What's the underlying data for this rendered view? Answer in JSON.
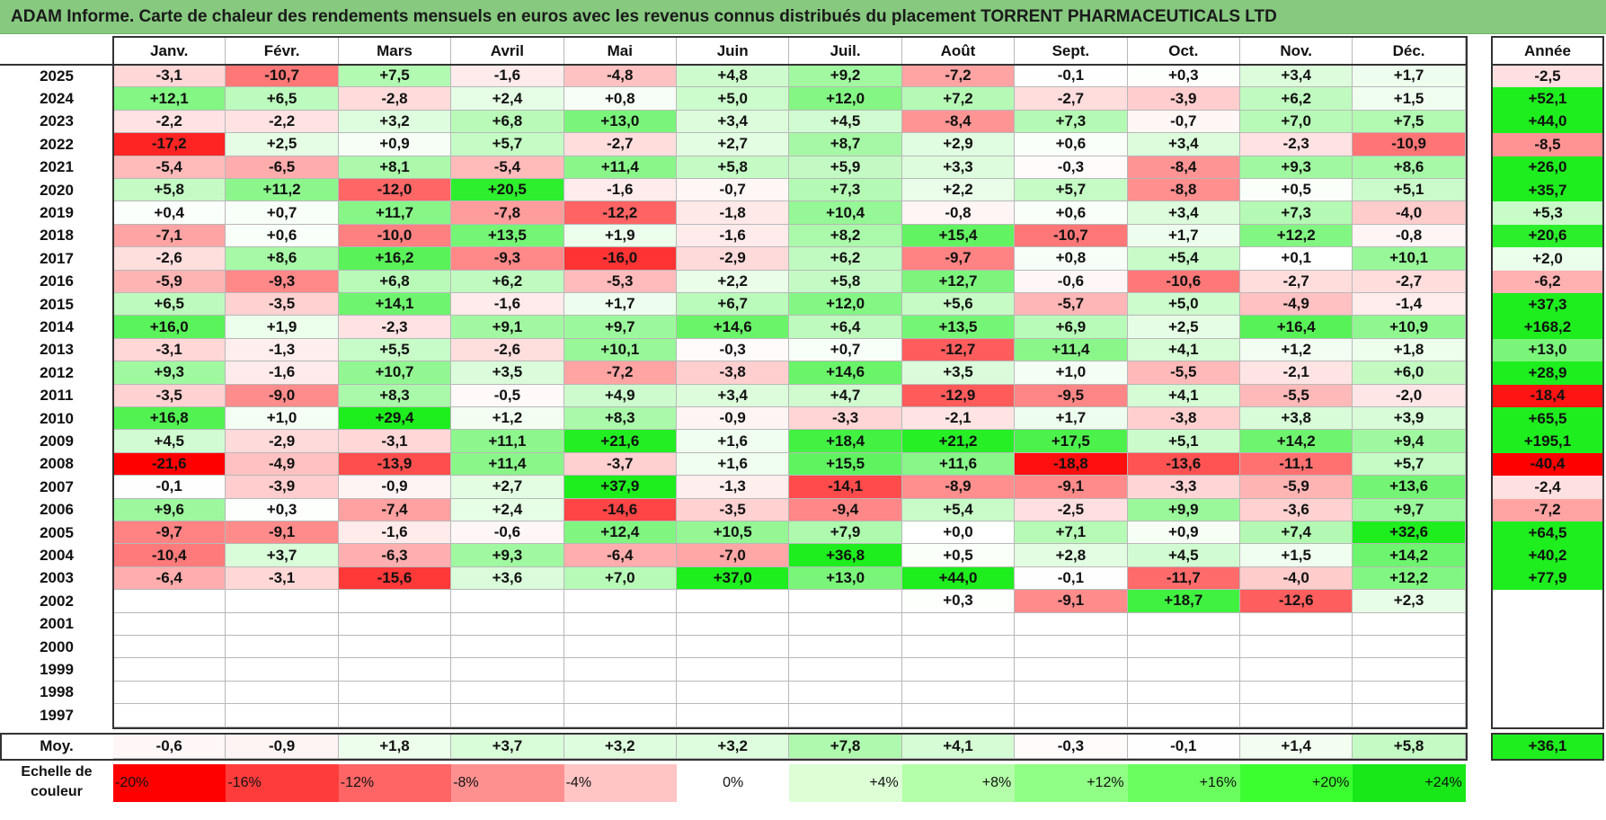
{
  "title": "ADAM Informe. Carte de chaleur des rendements mensuels en euros avec les revenus connus distribués du placement TORRENT PHARMACEUTICALS LTD",
  "chart_data": {
    "type": "heatmap",
    "title": "ADAM Informe. Carte de chaleur des rendements mensuels en euros avec les revenus connus distribués du placement TORRENT PHARMACEUTICALS LTD",
    "months": [
      "Janv.",
      "Févr.",
      "Mars",
      "Avril",
      "Mai",
      "Juin",
      "Juil.",
      "Août",
      "Sept.",
      "Oct.",
      "Nov.",
      "Déc."
    ],
    "year_header": "Année",
    "rows": [
      {
        "year": "2025",
        "values": [
          "-3,1",
          "-10,7",
          "+7,5",
          "-1,6",
          "-4,8",
          "+4,8",
          "+9,2",
          "-7,2",
          "-0,1",
          "+0,3",
          "+3,4",
          "+1,7"
        ],
        "annual": "-2,5"
      },
      {
        "year": "2024",
        "values": [
          "+12,1",
          "+6,5",
          "-2,8",
          "+2,4",
          "+0,8",
          "+5,0",
          "+12,0",
          "+7,2",
          "-2,7",
          "-3,9",
          "+6,2",
          "+1,5"
        ],
        "annual": "+52,1"
      },
      {
        "year": "2023",
        "values": [
          "-2,2",
          "-2,2",
          "+3,2",
          "+6,8",
          "+13,0",
          "+3,4",
          "+4,5",
          "-8,4",
          "+7,3",
          "-0,7",
          "+7,0",
          "+7,5"
        ],
        "annual": "+44,0"
      },
      {
        "year": "2022",
        "values": [
          "-17,2",
          "+2,5",
          "+0,9",
          "+5,7",
          "-2,7",
          "+2,7",
          "+8,7",
          "+2,9",
          "+0,6",
          "+3,4",
          "-2,3",
          "-10,9"
        ],
        "annual": "-8,5"
      },
      {
        "year": "2021",
        "values": [
          "-5,4",
          "-6,5",
          "+8,1",
          "-5,4",
          "+11,4",
          "+5,8",
          "+5,9",
          "+3,3",
          "-0,3",
          "-8,4",
          "+9,3",
          "+8,6"
        ],
        "annual": "+26,0"
      },
      {
        "year": "2020",
        "values": [
          "+5,8",
          "+11,2",
          "-12,0",
          "+20,5",
          "-1,6",
          "-0,7",
          "+7,3",
          "+2,2",
          "+5,7",
          "-8,8",
          "+0,5",
          "+5,1"
        ],
        "annual": "+35,7"
      },
      {
        "year": "2019",
        "values": [
          "+0,4",
          "+0,7",
          "+11,7",
          "-7,8",
          "-12,2",
          "-1,8",
          "+10,4",
          "-0,8",
          "+0,6",
          "+3,4",
          "+7,3",
          "-4,0"
        ],
        "annual": "+5,3"
      },
      {
        "year": "2018",
        "values": [
          "-7,1",
          "+0,6",
          "-10,0",
          "+13,5",
          "+1,9",
          "-1,6",
          "+8,2",
          "+15,4",
          "-10,7",
          "+1,7",
          "+12,2",
          "-0,8"
        ],
        "annual": "+20,6"
      },
      {
        "year": "2017",
        "values": [
          "-2,6",
          "+8,6",
          "+16,2",
          "-9,3",
          "-16,0",
          "-2,9",
          "+6,2",
          "-9,7",
          "+0,8",
          "+5,4",
          "+0,1",
          "+10,1"
        ],
        "annual": "+2,0"
      },
      {
        "year": "2016",
        "values": [
          "-5,9",
          "-9,3",
          "+6,8",
          "+6,2",
          "-5,3",
          "+2,2",
          "+5,8",
          "+12,7",
          "-0,6",
          "-10,6",
          "-2,7",
          "-2,7"
        ],
        "annual": "-6,2"
      },
      {
        "year": "2015",
        "values": [
          "+6,5",
          "-3,5",
          "+14,1",
          "-1,6",
          "+1,7",
          "+6,7",
          "+12,0",
          "+5,6",
          "-5,7",
          "+5,0",
          "-4,9",
          "-1,4"
        ],
        "annual": "+37,3"
      },
      {
        "year": "2014",
        "values": [
          "+16,0",
          "+1,9",
          "-2,3",
          "+9,1",
          "+9,7",
          "+14,6",
          "+6,4",
          "+13,5",
          "+6,9",
          "+2,5",
          "+16,4",
          "+10,9"
        ],
        "annual": "+168,2"
      },
      {
        "year": "2013",
        "values": [
          "-3,1",
          "-1,3",
          "+5,5",
          "-2,6",
          "+10,1",
          "-0,3",
          "+0,7",
          "-12,7",
          "+11,4",
          "+4,1",
          "+1,2",
          "+1,8"
        ],
        "annual": "+13,0"
      },
      {
        "year": "2012",
        "values": [
          "+9,3",
          "-1,6",
          "+10,7",
          "+3,5",
          "-7,2",
          "-3,8",
          "+14,6",
          "+3,5",
          "+1,0",
          "-5,5",
          "-2,1",
          "+6,0"
        ],
        "annual": "+28,9"
      },
      {
        "year": "2011",
        "values": [
          "-3,5",
          "-9,0",
          "+8,3",
          "-0,5",
          "+4,9",
          "+3,4",
          "+4,7",
          "-12,9",
          "-9,5",
          "+4,1",
          "-5,5",
          "-2,0"
        ],
        "annual": "-18,4"
      },
      {
        "year": "2010",
        "values": [
          "+16,8",
          "+1,0",
          "+29,4",
          "+1,2",
          "+8,3",
          "-0,9",
          "-3,3",
          "-2,1",
          "+1,7",
          "-3,8",
          "+3,8",
          "+3,9"
        ],
        "annual": "+65,5"
      },
      {
        "year": "2009",
        "values": [
          "+4,5",
          "-2,9",
          "-3,1",
          "+11,1",
          "+21,6",
          "+1,6",
          "+18,4",
          "+21,2",
          "+17,5",
          "+5,1",
          "+14,2",
          "+9,4"
        ],
        "annual": "+195,1"
      },
      {
        "year": "2008",
        "values": [
          "-21,6",
          "-4,9",
          "-13,9",
          "+11,4",
          "-3,7",
          "+1,6",
          "+15,5",
          "+11,6",
          "-18,8",
          "-13,6",
          "-11,1",
          "+5,7"
        ],
        "annual": "-40,4"
      },
      {
        "year": "2007",
        "values": [
          "-0,1",
          "-3,9",
          "-0,9",
          "+2,7",
          "+37,9",
          "-1,3",
          "-14,1",
          "-8,9",
          "-9,1",
          "-3,3",
          "-5,9",
          "+13,6"
        ],
        "annual": "-2,4"
      },
      {
        "year": "2006",
        "values": [
          "+9,6",
          "+0,3",
          "-7,4",
          "+2,4",
          "-14,6",
          "-3,5",
          "-9,4",
          "+5,4",
          "-2,5",
          "+9,9",
          "-3,6",
          "+9,7"
        ],
        "annual": "-7,2"
      },
      {
        "year": "2005",
        "values": [
          "-9,7",
          "-9,1",
          "-1,6",
          "-0,6",
          "+12,4",
          "+10,5",
          "+7,9",
          "+0,0",
          "+7,1",
          "+0,9",
          "+7,4",
          "+32,6"
        ],
        "annual": "+64,5"
      },
      {
        "year": "2004",
        "values": [
          "-10,4",
          "+3,7",
          "-6,3",
          "+9,3",
          "-6,4",
          "-7,0",
          "+36,8",
          "+0,5",
          "+2,8",
          "+4,5",
          "+1,5",
          "+14,2"
        ],
        "annual": "+40,2"
      },
      {
        "year": "2003",
        "values": [
          "-6,4",
          "-3,1",
          "-15,6",
          "+3,6",
          "+7,0",
          "+37,0",
          "+13,0",
          "+44,0",
          "-0,1",
          "-11,7",
          "-4,0",
          "+12,2"
        ],
        "annual": "+77,9"
      },
      {
        "year": "2002",
        "values": [
          "",
          "",
          "",
          "",
          "",
          "",
          "",
          "+0,3",
          "-9,1",
          "+18,7",
          "-12,6",
          "+2,3"
        ],
        "annual": ""
      },
      {
        "year": "2001",
        "values": [
          "",
          "",
          "",
          "",
          "",
          "",
          "",
          "",
          "",
          "",
          "",
          ""
        ],
        "annual": ""
      },
      {
        "year": "2000",
        "values": [
          "",
          "",
          "",
          "",
          "",
          "",
          "",
          "",
          "",
          "",
          "",
          ""
        ],
        "annual": ""
      },
      {
        "year": "1999",
        "values": [
          "",
          "",
          "",
          "",
          "",
          "",
          "",
          "",
          "",
          "",
          "",
          ""
        ],
        "annual": ""
      },
      {
        "year": "1998",
        "values": [
          "",
          "",
          "",
          "",
          "",
          "",
          "",
          "",
          "",
          "",
          "",
          ""
        ],
        "annual": ""
      },
      {
        "year": "1997",
        "values": [
          "",
          "",
          "",
          "",
          "",
          "",
          "",
          "",
          "",
          "",
          "",
          ""
        ],
        "annual": ""
      }
    ],
    "average": {
      "label": "Moy.",
      "values": [
        "-0,6",
        "-0,9",
        "+1,8",
        "+3,7",
        "+3,2",
        "+3,2",
        "+7,8",
        "+4,1",
        "-0,3",
        "-0,1",
        "+1,4",
        "+5,8"
      ],
      "annual": "+36,1"
    },
    "color_scale": {
      "label": "Echelle de couleur",
      "steps": [
        {
          "label": "-20%",
          "value": -20,
          "color": "#ff0000"
        },
        {
          "label": "-16%",
          "value": -16,
          "color": "#ff3c3c"
        },
        {
          "label": "-12%",
          "value": -12,
          "color": "#ff6565"
        },
        {
          "label": "-8%",
          "value": -8,
          "color": "#ff9090"
        },
        {
          "label": "-4%",
          "value": -4,
          "color": "#ffc4c4"
        },
        {
          "label": "0%",
          "value": 0,
          "color": "#ffffff"
        },
        {
          "label": "+4%",
          "value": 4,
          "color": "#dcffd6"
        },
        {
          "label": "+8%",
          "value": 8,
          "color": "#b4ffaa"
        },
        {
          "label": "+12%",
          "value": 12,
          "color": "#90ff85"
        },
        {
          "label": "+16%",
          "value": 16,
          "color": "#6aff5e"
        },
        {
          "label": "+20%",
          "value": 20,
          "color": "#3cff30"
        },
        {
          "label": "+24%",
          "value": 24,
          "color": "#18e818"
        }
      ]
    }
  }
}
